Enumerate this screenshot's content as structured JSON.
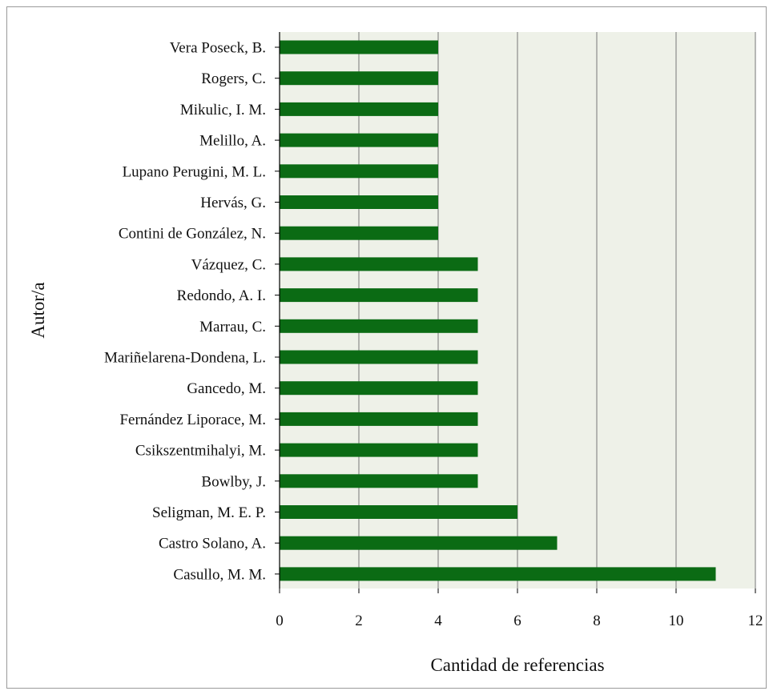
{
  "chart_data": {
    "type": "bar",
    "orientation": "horizontal",
    "categories": [
      "Vera Poseck, B.",
      "Rogers, C.",
      "Mikulic, I. M.",
      "Melillo, A.",
      "Lupano Perugini, M. L.",
      "Hervás, G.",
      "Contini de González, N.",
      "Vázquez, C.",
      "Redondo, A. I.",
      "Marrau, C.",
      "Mariñelarena-Dondena, L.",
      "Gancedo, M.",
      "Fernández Liporace, M.",
      "Csikszentmihalyi, M.",
      "Bowlby, J.",
      "Seligman, M. E. P.",
      "Castro Solano, A.",
      "Casullo, M. M."
    ],
    "values": [
      4,
      4,
      4,
      4,
      4,
      4,
      4,
      5,
      5,
      5,
      5,
      5,
      5,
      5,
      5,
      6,
      7,
      11
    ],
    "xlabel": "Cantidad de referencias",
    "ylabel": "Autor/a",
    "xlim": [
      0,
      12
    ],
    "xticks": [
      "0",
      "2",
      "4",
      "6",
      "8",
      "10",
      "12"
    ],
    "grid": "vertical",
    "colors": {
      "bar": "#0b6b14",
      "plot_background": "#eef1e8",
      "gridline": "#8c8c8c",
      "axis": "#000000"
    }
  }
}
